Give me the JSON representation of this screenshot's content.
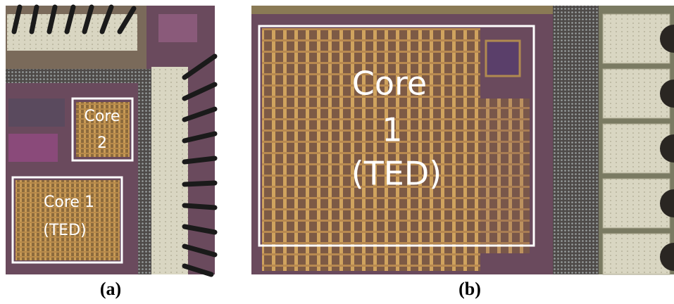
{
  "panels": [
    {
      "caption": "(a)",
      "boxes": [
        {
          "lines": [
            "Core",
            "2"
          ]
        },
        {
          "lines": [
            "Core 1",
            "(TED)"
          ]
        }
      ]
    },
    {
      "caption": "(b)",
      "boxes": [
        {
          "lines": [
            "Core",
            "1",
            "(TED)"
          ]
        }
      ]
    }
  ]
}
